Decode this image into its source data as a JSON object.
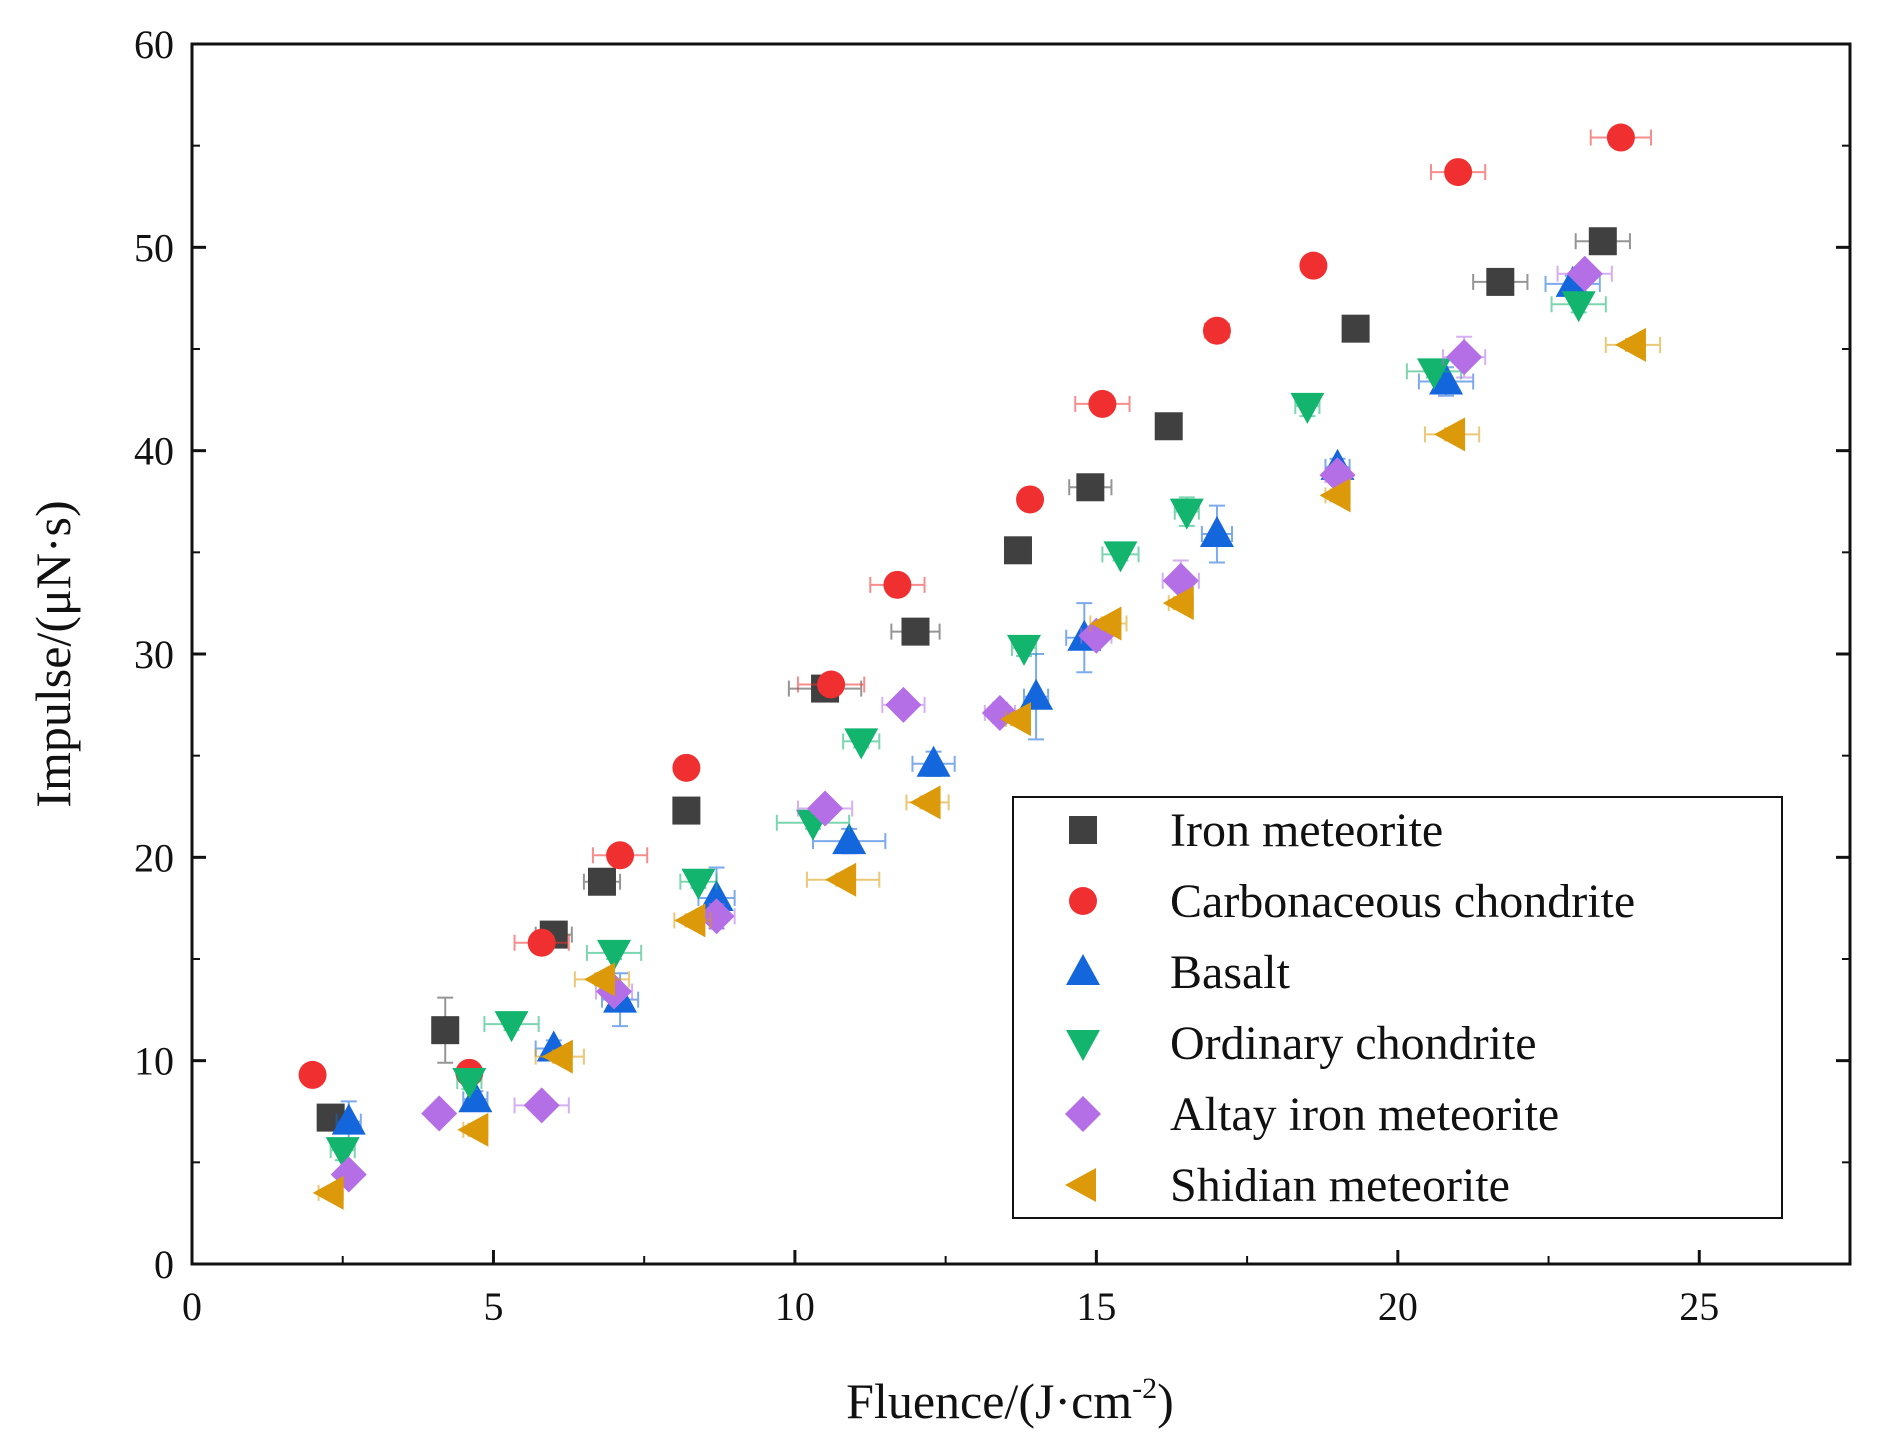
{
  "chart_data": {
    "type": "scatter",
    "title": "",
    "xlabel": "Fluence/(J·cm",
    "xlabel_sup": "-2",
    "xlabel_close": ")",
    "ylabel": "Impulse/(μN·s)",
    "xlim": [
      0,
      27.5
    ],
    "ylim": [
      0,
      60
    ],
    "xticks": [
      0,
      5,
      10,
      15,
      20,
      25
    ],
    "yticks": [
      0,
      10,
      20,
      30,
      40,
      50,
      60
    ],
    "grid": false,
    "legend_position": "bottom-right",
    "series": [
      {
        "name": "Iron meteorite",
        "marker": "square",
        "color": "#404040",
        "points": [
          [
            2.3,
            7.2
          ],
          [
            4.2,
            11.5
          ],
          [
            6.0,
            16.2
          ],
          [
            6.8,
            18.8
          ],
          [
            8.2,
            22.3
          ],
          [
            10.5,
            28.3
          ],
          [
            12.0,
            31.1
          ],
          [
            13.7,
            35.1
          ],
          [
            14.9,
            38.2
          ],
          [
            16.2,
            41.2
          ],
          [
            19.3,
            46.0
          ],
          [
            21.7,
            48.3
          ],
          [
            23.4,
            50.3
          ]
        ],
        "xerr": [
          0.2,
          0.2,
          0.3,
          0.3,
          0.2,
          0.6,
          0.4,
          0.2,
          0.35,
          0.2,
          0.2,
          0.45,
          0.45
        ],
        "yerr": [
          0.4,
          1.6,
          0.4,
          0.4,
          0.3,
          0.4,
          0.3,
          0.3,
          0.3,
          0.3,
          0.3,
          0.3,
          0.4
        ]
      },
      {
        "name": "Carbonaceous chondrite",
        "marker": "circle",
        "color": "#f03030",
        "points": [
          [
            2.0,
            9.3
          ],
          [
            4.6,
            9.4
          ],
          [
            5.8,
            15.8
          ],
          [
            7.1,
            20.1
          ],
          [
            8.2,
            24.4
          ],
          [
            10.6,
            28.5
          ],
          [
            11.7,
            33.4
          ],
          [
            13.9,
            37.6
          ],
          [
            15.1,
            42.3
          ],
          [
            17.0,
            45.9
          ],
          [
            18.6,
            49.1
          ],
          [
            21.0,
            53.7
          ],
          [
            23.7,
            55.4
          ]
        ],
        "xerr": [
          0.1,
          0.15,
          0.45,
          0.45,
          0.15,
          0.55,
          0.45,
          0.15,
          0.45,
          0.2,
          0.15,
          0.45,
          0.5
        ],
        "yerr": [
          0.2,
          0.2,
          0.3,
          0.3,
          0.2,
          0.3,
          0.3,
          0.2,
          0.3,
          0.2,
          0.2,
          0.3,
          0.3
        ]
      },
      {
        "name": "Basalt",
        "marker": "triangle-up",
        "color": "#1466dc",
        "points": [
          [
            2.6,
            7.0
          ],
          [
            4.7,
            8.1
          ],
          [
            6.0,
            10.6
          ],
          [
            7.1,
            13.0
          ],
          [
            8.7,
            18.0
          ],
          [
            10.9,
            20.8
          ],
          [
            12.3,
            24.6
          ],
          [
            14.0,
            27.9
          ],
          [
            14.8,
            30.8
          ],
          [
            17.0,
            35.9
          ],
          [
            19.0,
            39.2
          ],
          [
            20.8,
            43.4
          ],
          [
            22.9,
            48.2
          ]
        ],
        "xerr": [
          0.2,
          0.2,
          0.3,
          0.3,
          0.3,
          0.6,
          0.35,
          0.2,
          0.3,
          0.25,
          0.2,
          0.45,
          0.45
        ],
        "yerr": [
          1.0,
          0.4,
          0.4,
          1.3,
          1.5,
          0.6,
          0.6,
          2.1,
          1.7,
          1.4,
          0.4,
          0.7,
          0.4
        ]
      },
      {
        "name": "Ordinary chondrite",
        "marker": "triangle-down",
        "color": "#12b46e",
        "points": [
          [
            2.5,
            5.6
          ],
          [
            4.6,
            9.0
          ],
          [
            5.3,
            11.8
          ],
          [
            7.0,
            15.3
          ],
          [
            8.4,
            18.8
          ],
          [
            10.3,
            21.7
          ],
          [
            11.1,
            25.7
          ],
          [
            13.8,
            30.3
          ],
          [
            15.4,
            34.9
          ],
          [
            16.5,
            37.0
          ],
          [
            18.5,
            42.2
          ],
          [
            20.6,
            43.9
          ],
          [
            23.0,
            47.2
          ]
        ],
        "xerr": [
          0.2,
          0.2,
          0.45,
          0.45,
          0.3,
          0.6,
          0.3,
          0.2,
          0.3,
          0.2,
          0.2,
          0.45,
          0.45
        ],
        "yerr": [
          0.5,
          0.4,
          0.3,
          0.3,
          0.3,
          0.3,
          0.3,
          0.4,
          0.3,
          0.7,
          0.5,
          0.3,
          0.4
        ]
      },
      {
        "name": "Altay iron meteorite",
        "marker": "diamond",
        "color": "#b46ee6",
        "points": [
          [
            2.6,
            4.4
          ],
          [
            4.1,
            7.4
          ],
          [
            5.8,
            7.8
          ],
          [
            7.0,
            13.4
          ],
          [
            8.7,
            17.1
          ],
          [
            10.5,
            22.4
          ],
          [
            11.8,
            27.5
          ],
          [
            13.4,
            27.1
          ],
          [
            15.0,
            30.9
          ],
          [
            16.4,
            33.6
          ],
          [
            19.0,
            38.8
          ],
          [
            21.1,
            44.6
          ],
          [
            23.1,
            48.7
          ]
        ],
        "xerr": [
          0.15,
          0.15,
          0.45,
          0.3,
          0.3,
          0.45,
          0.35,
          0.25,
          0.25,
          0.3,
          0.2,
          0.35,
          0.45
        ],
        "yerr": [
          0.3,
          0.3,
          0.3,
          0.4,
          0.6,
          0.3,
          0.4,
          0.5,
          0.4,
          1.0,
          0.4,
          1.0,
          0.4
        ]
      },
      {
        "name": "Shidian meteorite",
        "marker": "triangle-left",
        "color": "#dc9a0a",
        "points": [
          [
            2.3,
            3.5
          ],
          [
            4.7,
            6.6
          ],
          [
            6.1,
            10.2
          ],
          [
            6.8,
            14.0
          ],
          [
            8.3,
            16.9
          ],
          [
            10.8,
            18.9
          ],
          [
            12.2,
            22.7
          ],
          [
            13.7,
            26.8
          ],
          [
            15.2,
            31.5
          ],
          [
            16.4,
            32.5
          ],
          [
            19.0,
            37.8
          ],
          [
            20.9,
            40.8
          ],
          [
            23.9,
            45.2
          ]
        ],
        "xerr": [
          0.2,
          0.2,
          0.4,
          0.45,
          0.3,
          0.6,
          0.35,
          0.2,
          0.3,
          0.2,
          0.2,
          0.45,
          0.45
        ],
        "yerr": [
          0.2,
          0.3,
          0.3,
          0.3,
          0.3,
          0.3,
          0.3,
          0.3,
          0.3,
          0.3,
          0.3,
          0.3,
          0.3
        ]
      }
    ]
  }
}
